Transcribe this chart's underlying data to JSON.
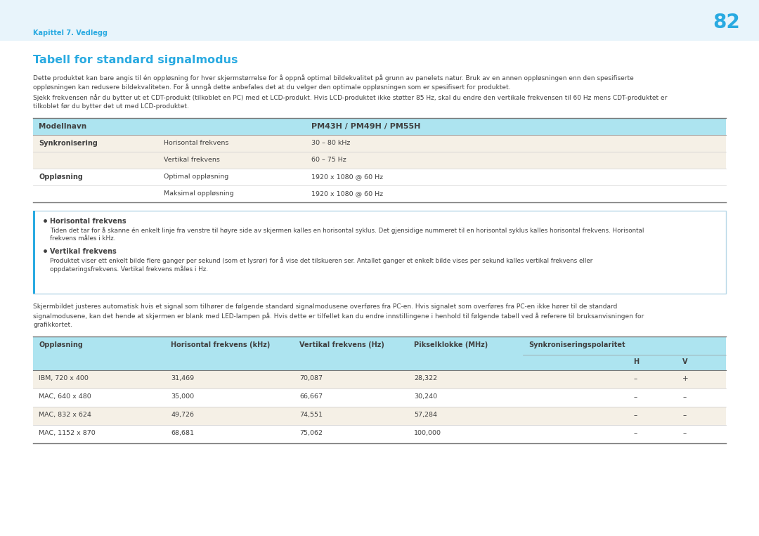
{
  "page_number": "82",
  "header_text": "Kapittel 7. Vedlegg",
  "title": "Tabell for standard signalmodus",
  "page_bg": "#e8f4fb",
  "content_bg": "#ffffff",
  "title_color": "#29aae1",
  "header_link_color": "#29aae1",
  "body_text_color": "#404040",
  "table1_header_bg": "#ade4f0",
  "table1_row_bg_odd": "#f5f0e6",
  "table1_row_bg_even": "#ffffff",
  "info_box_bg": "#ffffff",
  "info_box_border": "#29aae1",
  "info_box_outline": "#b8d8e8",
  "table2_header_bg": "#ade4f0",
  "table2_row_bg_odd": "#f5f0e6",
  "table2_row_bg_even": "#ffffff",
  "para1_lines": [
    "Dette produktet kan bare angis til én oppløsning for hver skjermstørrelse for å oppnå optimal bildekvalitet på grunn av panelets natur. Bruk av en annen oppløsningen enn den spesifiserte",
    "oppløsningen kan redusere bildekvaliteten. For å unngå dette anbefales det at du velger den optimale oppløsningen som er spesifisert for produktet."
  ],
  "para2_lines": [
    "Sjekk frekvensen når du bytter ut et CDT-produkt (tilkoblet en PC) med et LCD-produkt. Hvis LCD-produktet ikke støtter 85 Hz, skal du endre den vertikale frekvensen til 60 Hz mens CDT-produktet er",
    "tilkoblet før du bytter det ut med LCD-produktet."
  ],
  "table1_rows": [
    [
      "Synkronisering",
      "Horisontal frekvens",
      "30 – 80 kHz"
    ],
    [
      "",
      "Vertikal frekvens",
      "60 – 75 Hz"
    ],
    [
      "Oppløsning",
      "Optimal oppløsning",
      "1920 x 1080 @ 60 Hz"
    ],
    [
      "",
      "Maksimal oppløsning",
      "1920 x 1080 @ 60 Hz"
    ]
  ],
  "bullet1_title": "Horisontal frekvens",
  "bullet1_lines": [
    "Tiden det tar for å skanne én enkelt linje fra venstre til høyre side av skjermen kalles en horisontal syklus. Det gjensidige nummeret til en horisontal syklus kalles horisontal frekvens. Horisontal",
    "frekvens måles i kHz."
  ],
  "bullet2_title": "Vertikal frekvens",
  "bullet2_lines": [
    "Produktet viser ett enkelt bilde flere ganger per sekund (som et lysrør) for å vise det tilskueren ser. Antallet ganger et enkelt bilde vises per sekund kalles vertikal frekvens eller",
    "oppdateringsfrekvens. Vertikal frekvens måles i Hz."
  ],
  "para3_lines": [
    "Skjermbildet justeres automatisk hvis et signal som tilhører de følgende standard signalmodusene overføres fra PC-en. Hvis signalet som overføres fra PC-en ikke hører til de standard",
    "signalmodusene, kan det hende at skjermen er blank med LED-lampen på. Hvis dette er tilfellet kan du endre innstillingene i henhold til følgende tabell ved å referere til bruksanvisningen for",
    "grafikkortet."
  ],
  "table2_col_headers": [
    "Oppløsning",
    "Horisontal frekvens (kHz)",
    "Vertikal frekvens (Hz)",
    "Pikselklokke (MHz)",
    "Synkroniseringspolaritet"
  ],
  "table2_sub_headers": [
    "H",
    "V"
  ],
  "table2_rows": [
    [
      "IBM, 720 x 400",
      "31,469",
      "70,087",
      "28,322",
      "–",
      "+"
    ],
    [
      "MAC, 640 x 480",
      "35,000",
      "66,667",
      "30,240",
      "–",
      "–"
    ],
    [
      "MAC, 832 x 624",
      "49,726",
      "74,551",
      "57,284",
      "–",
      "–"
    ],
    [
      "MAC, 1152 x 870",
      "68,681",
      "75,062",
      "100,000",
      "–",
      "–"
    ]
  ]
}
